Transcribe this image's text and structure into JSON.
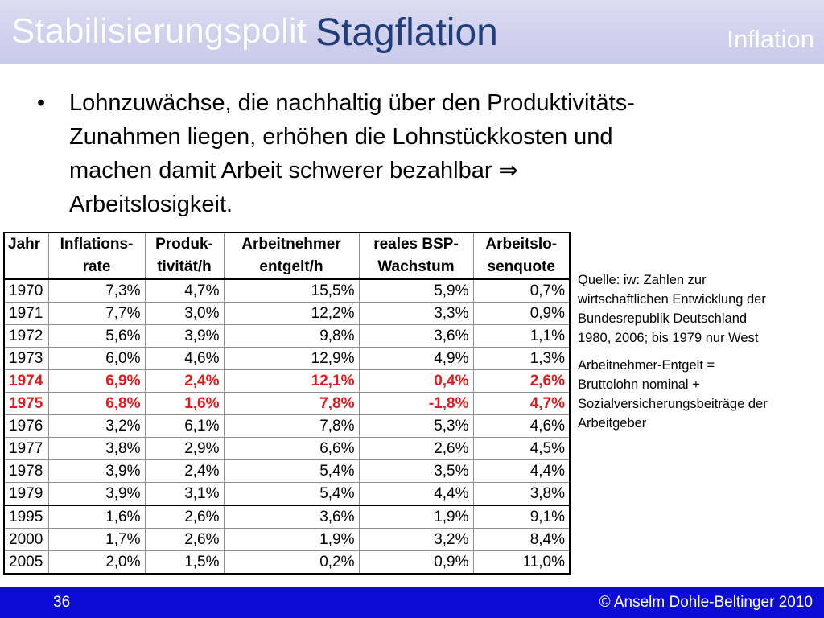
{
  "header": {
    "left_text": "Stabilisierungspolit",
    "title": "Stagflation",
    "right_text": "Inflation"
  },
  "bullet": {
    "marker": "•",
    "text_lines": [
      "Lohnzuwächse, die nachhaltig über den Produktivitäts-",
      "Zunahmen liegen, erhöhen die Lohnstückkosten und",
      "machen damit Arbeit schwerer bezahlbar ⇒",
      "Arbeitslosigkeit."
    ]
  },
  "table": {
    "headers": [
      [
        "Jahr",
        ""
      ],
      [
        "Inflations-",
        "rate"
      ],
      [
        "Produk-",
        "tivität/h"
      ],
      [
        "Arbeitnehmer",
        "entgelt/h"
      ],
      [
        "reales BSP-",
        "Wachstum"
      ],
      [
        "Arbeitslo-",
        "senquote"
      ]
    ],
    "rows": [
      [
        "1970",
        "7,3%",
        "4,7%",
        "15,5%",
        "5,9%",
        "0,7%"
      ],
      [
        "1971",
        "7,7%",
        "3,0%",
        "12,2%",
        "3,3%",
        "0,9%"
      ],
      [
        "1972",
        "5,6%",
        "3,9%",
        "9,8%",
        "3,6%",
        "1,1%"
      ],
      [
        "1973",
        "6,0%",
        "4,6%",
        "12,9%",
        "4,9%",
        "1,3%"
      ],
      [
        "1974",
        "6,9%",
        "2,4%",
        "12,1%",
        "0,4%",
        "2,6%"
      ],
      [
        "1975",
        "6,8%",
        "1,6%",
        "7,8%",
        "-1,8%",
        "4,7%"
      ],
      [
        "1976",
        "3,2%",
        "6,1%",
        "7,8%",
        "5,3%",
        "4,6%"
      ],
      [
        "1977",
        "3,8%",
        "2,9%",
        "6,6%",
        "2,6%",
        "4,5%"
      ],
      [
        "1978",
        "3,9%",
        "2,4%",
        "5,4%",
        "3,5%",
        "4,4%"
      ],
      [
        "1979",
        "3,9%",
        "3,1%",
        "5,4%",
        "4,4%",
        "3,8%"
      ],
      [
        "1995",
        "1,6%",
        "2,6%",
        "3,6%",
        "1,9%",
        "9,1%"
      ],
      [
        "2000",
        "1,7%",
        "2,6%",
        "1,9%",
        "3,2%",
        "8,4%"
      ],
      [
        "2005",
        "2,0%",
        "1,5%",
        "0,2%",
        "0,9%",
        "11,0%"
      ]
    ],
    "highlight_color": "#e01b1b"
  },
  "notes": {
    "source_lines": [
      "Quelle: iw: Zahlen zur",
      "wirtschaftlichen Entwicklung der",
      "Bundesrepublik Deutschland",
      "1980, 2006; bis 1979 nur West"
    ],
    "definition_lines": [
      "Arbeitnehmer-Entgelt =",
      "Bruttolohn nominal +",
      "Sozialversicherungsbeiträge der",
      "Arbeitgeber"
    ]
  },
  "footer": {
    "page_number": "36",
    "copyright": "© Anselm Dohle-Beltinger 2010",
    "background": "#0c0cd6"
  }
}
